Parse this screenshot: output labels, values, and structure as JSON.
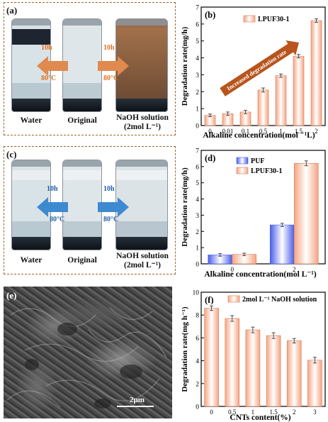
{
  "panels": {
    "a": {
      "label": "(a)",
      "vials": [
        "Water",
        "Original",
        "NaOH solution\n(2mol L⁻¹)"
      ],
      "arrow_time": "10h",
      "arrow_temp": "80°C"
    },
    "c": {
      "label": "(c)",
      "vials": [
        "Water",
        "Original",
        "NaOH solution\n(2mol L⁻¹)"
      ],
      "arrow_time": "10h",
      "arrow_temp": "80°C"
    },
    "e": {
      "label": "(e)",
      "scale_bar": "2μm"
    }
  },
  "colors": {
    "orange_bar": "#f4a582",
    "blue_bar": "#4a5ee8",
    "frame": "#a0642a",
    "trend_arrow": "#b8541c"
  },
  "chart_data": [
    {
      "id": "b",
      "panel_label": "(b)",
      "type": "bar",
      "categories": [
        "0",
        "0.01",
        "0.1",
        "0.5",
        "1",
        "1.5",
        "2"
      ],
      "series": [
        {
          "name": "LPUF30-1",
          "values": [
            0.6,
            0.7,
            0.8,
            2.1,
            2.95,
            4.1,
            6.2
          ],
          "errors": [
            0.08,
            0.1,
            0.1,
            0.12,
            0.1,
            0.1,
            0.1
          ]
        }
      ],
      "xlabel": "Alkaline concentration(mol ⁻¹L)",
      "ylabel": "Degradation rate(mg/h)",
      "ylim": [
        0,
        7
      ],
      "yticks": [
        0,
        1,
        2,
        3,
        4,
        5,
        6,
        7
      ],
      "annotation": "Increased degradation rate",
      "legend": "top-center"
    },
    {
      "id": "d",
      "panel_label": "(d)",
      "type": "bar",
      "categories": [
        "0",
        "2"
      ],
      "series": [
        {
          "name": "PUF",
          "values": [
            0.55,
            2.4
          ],
          "errors": [
            0.08,
            0.1
          ]
        },
        {
          "name": "LPUF30-1",
          "values": [
            0.58,
            6.2
          ],
          "errors": [
            0.08,
            0.15
          ]
        }
      ],
      "xlabel": "Alkaline concentration(mol L⁻¹)",
      "ylabel": "Degradation rate(mg/h)",
      "ylim": [
        0,
        7
      ],
      "yticks": [
        0,
        1,
        2,
        3,
        4,
        5,
        6,
        7
      ],
      "legend": "top-left"
    },
    {
      "id": "f",
      "panel_label": "(f)",
      "type": "bar",
      "categories": [
        "0",
        "0.5",
        "1",
        "1.5",
        "2",
        "3"
      ],
      "series": [
        {
          "name": "2mol L⁻¹ NaOH solution",
          "values": [
            8.6,
            7.7,
            6.7,
            6.2,
            5.75,
            4.05
          ],
          "errors": [
            0.2,
            0.25,
            0.25,
            0.25,
            0.2,
            0.25
          ]
        }
      ],
      "xlabel": "CNTs content(%)",
      "ylabel": "Degradation rate(mg h⁻¹)",
      "ylim": [
        0,
        10
      ],
      "yticks": [
        0,
        2,
        4,
        6,
        8,
        10
      ],
      "legend": "top-right"
    }
  ]
}
